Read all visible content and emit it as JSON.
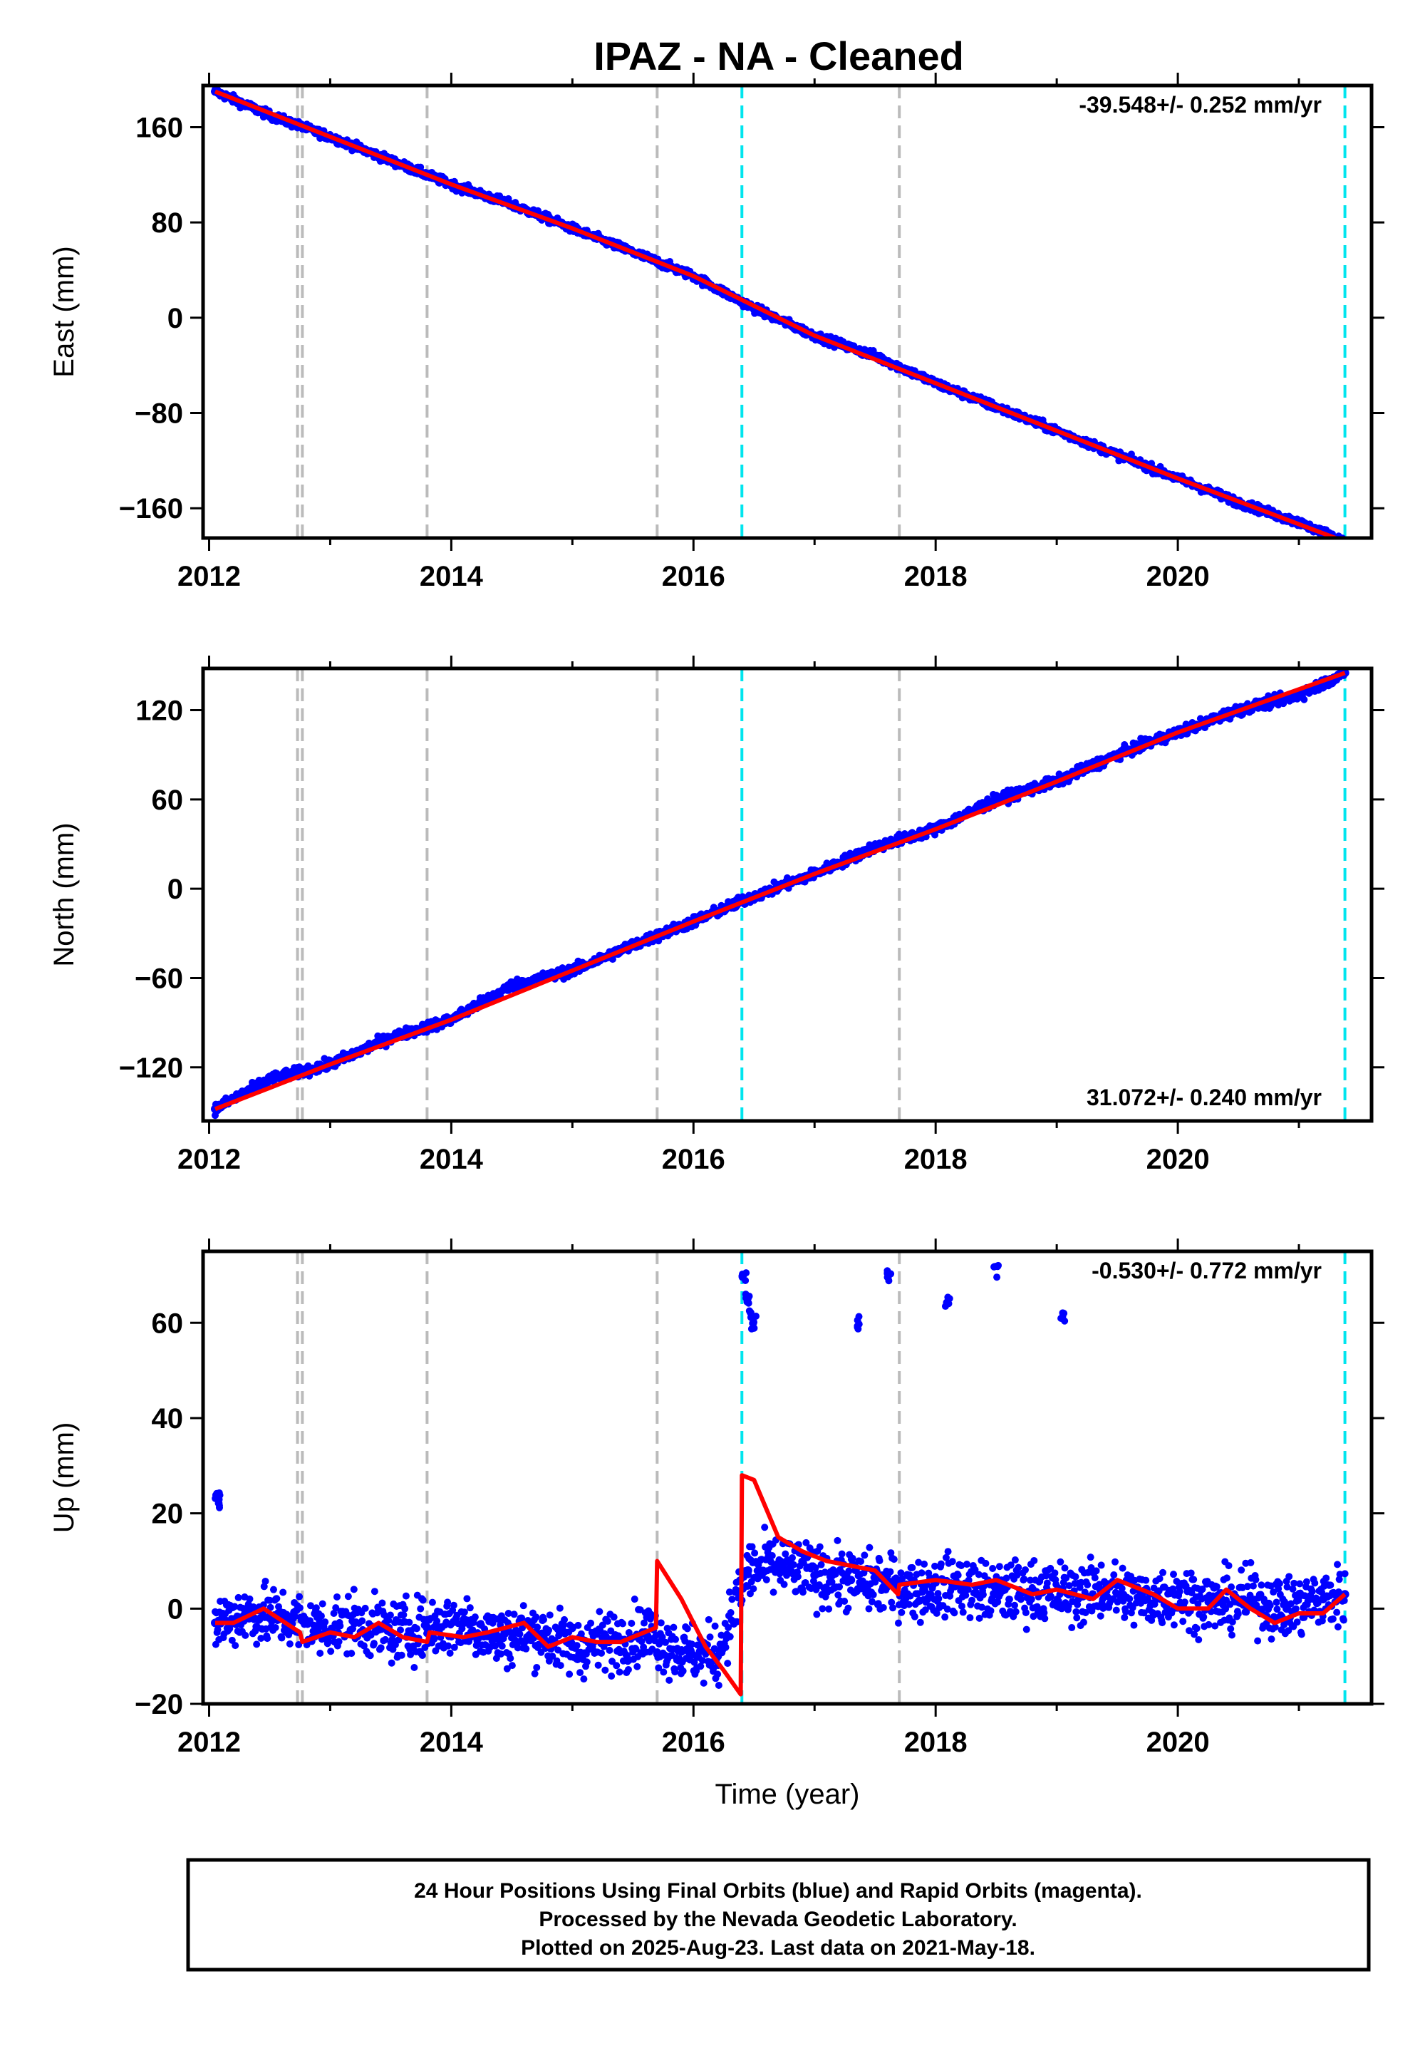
{
  "chart_data": [
    {
      "type": "scatter",
      "panel": "east",
      "title": "IPAZ  - NA - Cleaned",
      "ylabel": "East (mm)",
      "xlabel": "",
      "xlim": [
        2011.95,
        2021.6
      ],
      "ylim": [
        -185,
        195
      ],
      "x_ticks": [
        2012,
        2014,
        2016,
        2018,
        2020
      ],
      "x_tick_labels": [
        "2012",
        "2014",
        "2016",
        "2018",
        "2020"
      ],
      "y_ticks": [
        160,
        80,
        0,
        -80,
        -160
      ],
      "y_tick_labels": [
        "160",
        "80",
        "0",
        "−80",
        "−160"
      ],
      "rate_label": "-39.548+/- 0.252 mm/yr",
      "rate_placement": "top-right",
      "series": [
        {
          "name": "24 Hour Positions (Final Orbits)",
          "color": "#0000ff",
          "kind": "points",
          "x": [
            2012.05,
            2012.5,
            2013.0,
            2013.5,
            2014.0,
            2014.5,
            2015.0,
            2015.5,
            2016.0,
            2016.5,
            2017.0,
            2017.5,
            2018.0,
            2018.5,
            2019.0,
            2019.5,
            2020.0,
            2020.5,
            2021.0,
            2021.38
          ],
          "y": [
            190,
            170,
            152,
            132,
            112,
            95,
            75,
            55,
            35,
            8,
            -15,
            -32,
            -55,
            -75,
            -95,
            -115,
            -135,
            -155,
            -172,
            -188
          ]
        },
        {
          "name": "Model fit",
          "color": "#ff0000",
          "kind": "line",
          "x": [
            2012.05,
            2013.0,
            2014.0,
            2015.0,
            2016.0,
            2017.0,
            2018.0,
            2019.0,
            2020.0,
            2021.38
          ],
          "y": [
            190,
            152,
            112,
            75,
            35,
            -15,
            -55,
            -95,
            -135,
            -188
          ]
        }
      ],
      "markers": [
        {
          "x": 2012.73,
          "color": "#bbbbbb"
        },
        {
          "x": 2012.77,
          "color": "#bbbbbb"
        },
        {
          "x": 2013.8,
          "color": "#bbbbbb"
        },
        {
          "x": 2015.7,
          "color": "#bbbbbb"
        },
        {
          "x": 2016.4,
          "color": "#00e5ee"
        },
        {
          "x": 2017.7,
          "color": "#bbbbbb"
        },
        {
          "x": 2021.38,
          "color": "#00e5ee"
        }
      ]
    },
    {
      "type": "scatter",
      "panel": "north",
      "ylabel": "North (mm)",
      "xlabel": "",
      "xlim": [
        2011.95,
        2021.6
      ],
      "ylim": [
        -156,
        148
      ],
      "x_ticks": [
        2012,
        2014,
        2016,
        2018,
        2020
      ],
      "x_tick_labels": [
        "2012",
        "2014",
        "2016",
        "2018",
        "2020"
      ],
      "y_ticks": [
        120,
        60,
        0,
        -60,
        -120
      ],
      "y_tick_labels": [
        "120",
        "60",
        "0",
        "−60",
        "−120"
      ],
      "rate_label": "31.072+/- 0.240 mm/yr",
      "rate_placement": "bottom-right",
      "series": [
        {
          "name": "24 Hour Positions (Final Orbits)",
          "color": "#0000ff",
          "kind": "points",
          "x": [
            2012.05,
            2012.5,
            2013.0,
            2013.5,
            2014.0,
            2014.5,
            2015.0,
            2015.5,
            2016.0,
            2016.5,
            2017.0,
            2017.5,
            2018.0,
            2018.5,
            2019.0,
            2019.5,
            2020.0,
            2020.5,
            2021.0,
            2021.38
          ],
          "y": [
            -148,
            -128,
            -118,
            -100,
            -88,
            -65,
            -55,
            -38,
            -22,
            -5,
            10,
            28,
            40,
            60,
            72,
            90,
            105,
            120,
            130,
            145
          ]
        },
        {
          "name": "Model fit",
          "color": "#ff0000",
          "kind": "line",
          "x": [
            2012.05,
            2013.0,
            2014.0,
            2015.0,
            2016.0,
            2017.0,
            2018.0,
            2019.0,
            2020.0,
            2021.38
          ],
          "y": [
            -148,
            -118,
            -88,
            -55,
            -22,
            10,
            40,
            72,
            105,
            145
          ]
        }
      ],
      "markers": [
        {
          "x": 2012.73,
          "color": "#bbbbbb"
        },
        {
          "x": 2012.77,
          "color": "#bbbbbb"
        },
        {
          "x": 2013.8,
          "color": "#bbbbbb"
        },
        {
          "x": 2015.7,
          "color": "#bbbbbb"
        },
        {
          "x": 2016.4,
          "color": "#00e5ee"
        },
        {
          "x": 2017.7,
          "color": "#bbbbbb"
        },
        {
          "x": 2021.38,
          "color": "#00e5ee"
        }
      ]
    },
    {
      "type": "scatter",
      "panel": "up",
      "ylabel": "Up (mm)",
      "xlabel": "Time (year)",
      "xlim": [
        2011.95,
        2021.6
      ],
      "ylim": [
        -20,
        75
      ],
      "x_ticks": [
        2012,
        2014,
        2016,
        2018,
        2020
      ],
      "x_tick_labels": [
        "2012",
        "2014",
        "2016",
        "2018",
        "2020"
      ],
      "y_ticks": [
        60,
        40,
        20,
        0,
        -20
      ],
      "y_tick_labels": [
        "60",
        "40",
        "20",
        "0",
        "−20"
      ],
      "rate_label": "-0.530+/- 0.772 mm/yr",
      "rate_placement": "top-right",
      "series": [
        {
          "name": "24 Hour Positions (Final Orbits)",
          "color": "#0000ff",
          "kind": "points",
          "x": [
            2012.05,
            2012.3,
            2012.6,
            2012.9,
            2013.2,
            2013.5,
            2013.8,
            2014.1,
            2014.4,
            2014.7,
            2015.0,
            2015.3,
            2015.6,
            2015.9,
            2016.2,
            2016.45,
            2016.7,
            2017.0,
            2017.3,
            2017.6,
            2017.9,
            2018.2,
            2018.5,
            2018.8,
            2019.1,
            2019.4,
            2019.7,
            2020.0,
            2020.3,
            2020.6,
            2020.9,
            2021.2,
            2021.38
          ],
          "y": [
            -3,
            -1,
            -2,
            -4,
            -3,
            -5,
            -4,
            -3,
            -6,
            -5,
            -8,
            -7,
            -5,
            -9,
            -10,
            8,
            9,
            7,
            6,
            5,
            4,
            5,
            3,
            4,
            3,
            4,
            2,
            3,
            1,
            2,
            0,
            2,
            3
          ]
        },
        {
          "name": "Outliers",
          "color": "#0000ff",
          "kind": "points",
          "x": [
            2012.07,
            2012.08,
            2016.42,
            2016.45,
            2016.48,
            2016.5,
            2017.35,
            2017.62,
            2018.1,
            2018.5,
            2019.05
          ],
          "y": [
            23,
            22.5,
            70,
            65,
            62,
            60,
            60,
            70,
            64,
            71,
            61
          ]
        },
        {
          "name": "Model fit",
          "color": "#ff0000",
          "kind": "line",
          "x": [
            2012.05,
            2012.2,
            2012.45,
            2012.75,
            2012.77,
            2013.0,
            2013.2,
            2013.4,
            2013.6,
            2013.8,
            2013.82,
            2014.1,
            2014.3,
            2014.6,
            2014.8,
            2015.0,
            2015.2,
            2015.4,
            2015.69,
            2015.7,
            2015.9,
            2016.1,
            2016.25,
            2016.39,
            2016.4,
            2016.5,
            2016.7,
            2016.9,
            2017.1,
            2017.3,
            2017.5,
            2017.69,
            2017.7,
            2018.0,
            2018.3,
            2018.5,
            2018.8,
            2019.0,
            2019.3,
            2019.5,
            2019.8,
            2020.0,
            2020.25,
            2020.4,
            2020.6,
            2020.8,
            2021.0,
            2021.2,
            2021.38
          ],
          "y": [
            -3,
            -3,
            0,
            -5,
            -7,
            -5,
            -6,
            -3,
            -6,
            -7,
            -5,
            -6,
            -5,
            -3,
            -8,
            -6,
            -7,
            -7,
            -4,
            10,
            2,
            -8,
            -13,
            -18,
            28,
            27,
            15,
            12,
            10,
            9,
            8,
            3,
            5,
            6,
            5,
            6,
            3,
            4,
            2,
            6,
            3,
            0,
            0,
            4,
            0,
            -3,
            -1,
            -1,
            3
          ]
        }
      ],
      "markers": [
        {
          "x": 2012.73,
          "color": "#bbbbbb"
        },
        {
          "x": 2012.77,
          "color": "#bbbbbb"
        },
        {
          "x": 2013.8,
          "color": "#bbbbbb"
        },
        {
          "x": 2015.7,
          "color": "#bbbbbb"
        },
        {
          "x": 2016.4,
          "color": "#00e5ee"
        },
        {
          "x": 2017.7,
          "color": "#bbbbbb"
        },
        {
          "x": 2021.38,
          "color": "#00e5ee"
        }
      ]
    }
  ],
  "footer": {
    "line1": "24 Hour Positions Using Final Orbits (blue) and Rapid Orbits (magenta).",
    "line2": "Processed by the Nevada Geodetic Laboratory.",
    "line3": "Plotted on 2025-Aug-23. Last data on 2021-May-18."
  }
}
